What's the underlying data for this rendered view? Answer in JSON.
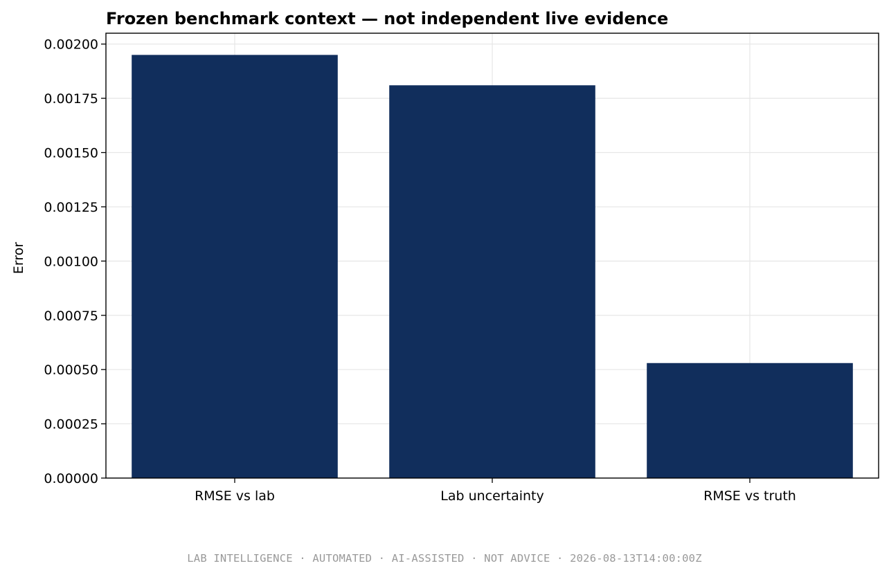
{
  "chart_data": {
    "type": "bar",
    "title": "Frozen benchmark context — not independent live evidence",
    "xlabel": "",
    "ylabel": "Error",
    "categories": [
      "RMSE vs lab",
      "Lab uncertainty",
      "RMSE vs truth"
    ],
    "values": [
      0.00195,
      0.00181,
      0.00053
    ],
    "ylim": [
      0,
      0.00205
    ],
    "yticks": [
      0.0,
      0.00025,
      0.0005,
      0.00075,
      0.001,
      0.00125,
      0.0015,
      0.00175,
      0.002
    ],
    "ytick_labels": [
      "0.00000",
      "0.00025",
      "0.00050",
      "0.00075",
      "0.00100",
      "0.00125",
      "0.00150",
      "0.00175",
      "0.00200"
    ],
    "grid": true,
    "bar_color": "#112e5c"
  },
  "footer": {
    "text": "LAB INTELLIGENCE · AUTOMATED · AI-ASSISTED · NOT ADVICE · 2026-08-13T14:00:00Z"
  }
}
